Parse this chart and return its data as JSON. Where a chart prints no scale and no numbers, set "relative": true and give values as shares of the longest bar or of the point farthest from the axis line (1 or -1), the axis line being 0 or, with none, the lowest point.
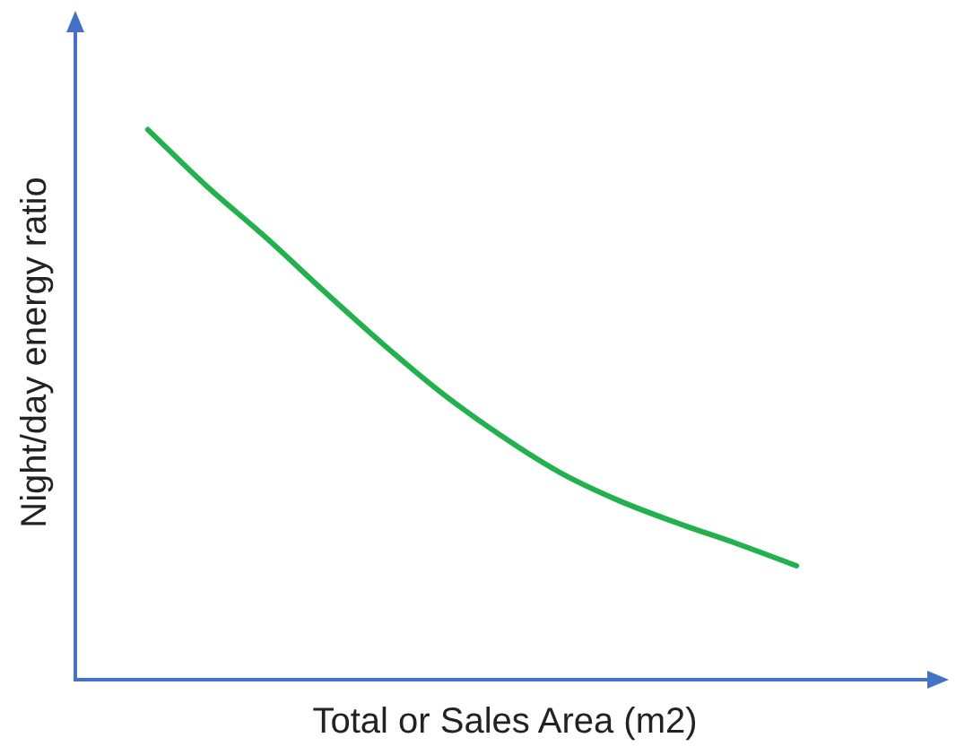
{
  "chart_data": {
    "type": "line",
    "relative": true,
    "xlabel": "Total or Sales Area (m2)",
    "ylabel": "Night/day energy ratio",
    "categories": [
      null,
      null,
      null,
      null,
      null,
      null,
      null,
      null,
      null,
      null,
      null,
      null
    ],
    "series": [
      {
        "color": "#22b14c",
        "values": [
          1,
          0.897,
          0.804,
          0.705,
          0.609,
          0.52,
          0.443,
          0.376,
          0.325,
          0.284,
          0.247,
          0.207
        ]
      }
    ],
    "grid": false,
    "legend": false,
    "marker": "none",
    "line_style": "solid"
  }
}
